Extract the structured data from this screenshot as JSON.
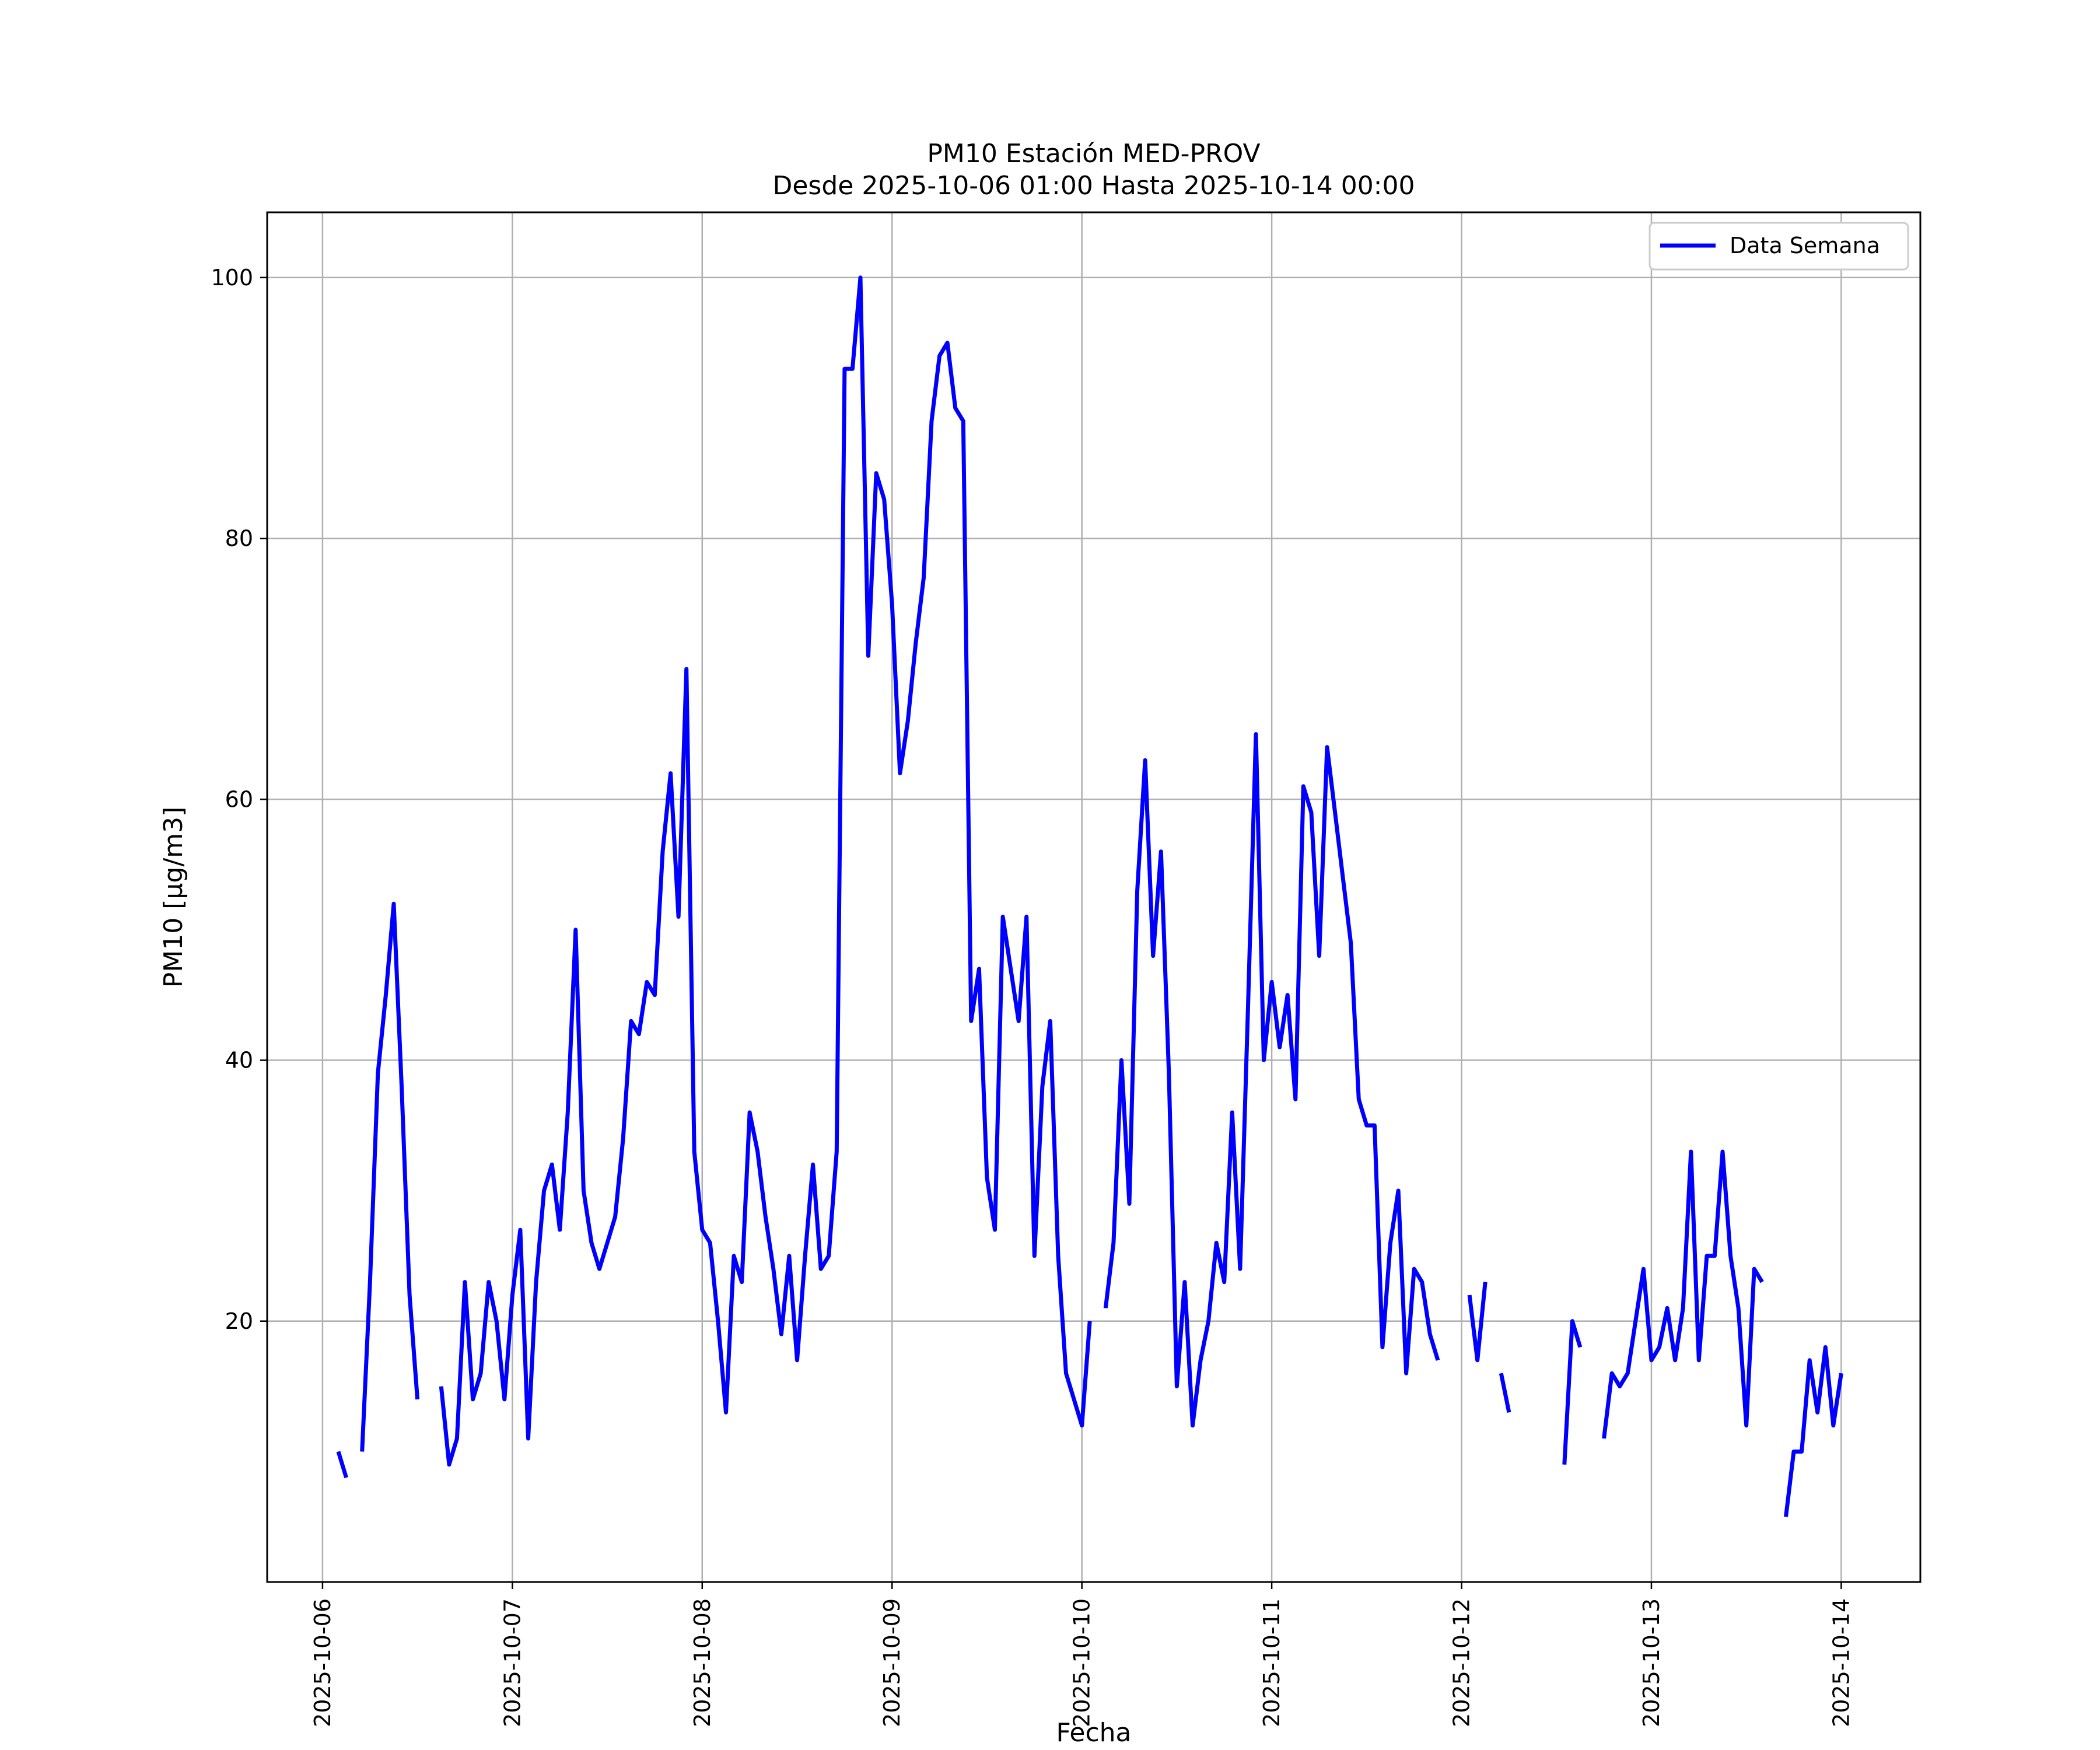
{
  "chart_data": {
    "type": "line",
    "title": [
      "PM10 Estación MED-PROV",
      "Desde 2025-10-06 01:00 Hasta 2025-10-14 00:00"
    ],
    "xlabel": "Fecha",
    "ylabel": "PM10 [μg/m3]",
    "xlim": [
      "2025-10-05 17:00",
      "2025-10-14 10:00"
    ],
    "ylim": [
      0,
      105
    ],
    "x_ticks": [
      "2025-10-06",
      "2025-10-07",
      "2025-10-08",
      "2025-10-09",
      "2025-10-10",
      "2025-10-11",
      "2025-10-12",
      "2025-10-13",
      "2025-10-14"
    ],
    "y_ticks": [
      20,
      40,
      60,
      80,
      100
    ],
    "grid": true,
    "legend": {
      "position": "top-right",
      "entries": [
        "Data Semana"
      ]
    },
    "series": [
      {
        "name": "Data Semana",
        "color": "#0000ff",
        "points": [
          [
            "2025-10-06 02:00",
            10
          ],
          [
            "2025-10-06 03:00",
            8
          ],
          [
            "2025-10-06 04:00",
            null
          ],
          [
            "2025-10-06 05:00",
            10
          ],
          [
            "2025-10-06 06:00",
            23
          ],
          [
            "2025-10-06 07:00",
            39
          ],
          [
            "2025-10-06 08:00",
            45
          ],
          [
            "2025-10-06 09:00",
            52
          ],
          [
            "2025-10-06 10:00",
            38
          ],
          [
            "2025-10-06 11:00",
            22
          ],
          [
            "2025-10-06 12:00",
            14
          ],
          [
            "2025-10-06 13:00",
            null
          ],
          [
            "2025-10-06 15:00",
            15
          ],
          [
            "2025-10-06 16:00",
            9
          ],
          [
            "2025-10-06 17:00",
            11
          ],
          [
            "2025-10-06 18:00",
            23
          ],
          [
            "2025-10-06 19:00",
            14
          ],
          [
            "2025-10-06 20:00",
            16
          ],
          [
            "2025-10-06 21:00",
            23
          ],
          [
            "2025-10-06 22:00",
            20
          ],
          [
            "2025-10-06 23:00",
            14
          ],
          [
            "2025-10-07 00:00",
            22
          ],
          [
            "2025-10-07 01:00",
            27
          ],
          [
            "2025-10-07 02:00",
            11
          ],
          [
            "2025-10-07 03:00",
            23
          ],
          [
            "2025-10-07 04:00",
            30
          ],
          [
            "2025-10-07 05:00",
            32
          ],
          [
            "2025-10-07 06:00",
            27
          ],
          [
            "2025-10-07 07:00",
            36
          ],
          [
            "2025-10-07 08:00",
            50
          ],
          [
            "2025-10-07 09:00",
            30
          ],
          [
            "2025-10-07 10:00",
            26
          ],
          [
            "2025-10-07 11:00",
            24
          ],
          [
            "2025-10-07 12:00",
            26
          ],
          [
            "2025-10-07 13:00",
            28
          ],
          [
            "2025-10-07 14:00",
            34
          ],
          [
            "2025-10-07 15:00",
            43
          ],
          [
            "2025-10-07 16:00",
            42
          ],
          [
            "2025-10-07 17:00",
            46
          ],
          [
            "2025-10-07 18:00",
            45
          ],
          [
            "2025-10-07 19:00",
            56
          ],
          [
            "2025-10-07 20:00",
            62
          ],
          [
            "2025-10-07 21:00",
            51
          ],
          [
            "2025-10-07 22:00",
            70
          ],
          [
            "2025-10-07 23:00",
            33
          ],
          [
            "2025-10-08 00:00",
            27
          ],
          [
            "2025-10-08 01:00",
            26
          ],
          [
            "2025-10-08 02:00",
            20
          ],
          [
            "2025-10-08 03:00",
            13
          ],
          [
            "2025-10-08 04:00",
            25
          ],
          [
            "2025-10-08 05:00",
            23
          ],
          [
            "2025-10-08 06:00",
            36
          ],
          [
            "2025-10-08 07:00",
            33
          ],
          [
            "2025-10-08 08:00",
            28
          ],
          [
            "2025-10-08 09:00",
            24
          ],
          [
            "2025-10-08 10:00",
            19
          ],
          [
            "2025-10-08 11:00",
            25
          ],
          [
            "2025-10-08 12:00",
            17
          ],
          [
            "2025-10-08 13:00",
            25
          ],
          [
            "2025-10-08 14:00",
            32
          ],
          [
            "2025-10-08 15:00",
            24
          ],
          [
            "2025-10-08 16:00",
            25
          ],
          [
            "2025-10-08 17:00",
            33
          ],
          [
            "2025-10-08 18:00",
            93
          ],
          [
            "2025-10-08 19:00",
            93
          ],
          [
            "2025-10-08 20:00",
            100
          ],
          [
            "2025-10-08 21:00",
            71
          ],
          [
            "2025-10-08 22:00",
            85
          ],
          [
            "2025-10-08 23:00",
            83
          ],
          [
            "2025-10-09 00:00",
            75
          ],
          [
            "2025-10-09 01:00",
            62
          ],
          [
            "2025-10-09 02:00",
            66
          ],
          [
            "2025-10-09 03:00",
            72
          ],
          [
            "2025-10-09 04:00",
            77
          ],
          [
            "2025-10-09 05:00",
            89
          ],
          [
            "2025-10-09 06:00",
            94
          ],
          [
            "2025-10-09 07:00",
            95
          ],
          [
            "2025-10-09 08:00",
            90
          ],
          [
            "2025-10-09 09:00",
            89
          ],
          [
            "2025-10-09 10:00",
            43
          ],
          [
            "2025-10-09 11:00",
            47
          ],
          [
            "2025-10-09 12:00",
            31
          ],
          [
            "2025-10-09 13:00",
            27
          ],
          [
            "2025-10-09 14:00",
            51
          ],
          [
            "2025-10-09 15:00",
            47
          ],
          [
            "2025-10-09 16:00",
            43
          ],
          [
            "2025-10-09 17:00",
            51
          ],
          [
            "2025-10-09 18:00",
            25
          ],
          [
            "2025-10-09 19:00",
            38
          ],
          [
            "2025-10-09 20:00",
            43
          ],
          [
            "2025-10-09 21:00",
            25
          ],
          [
            "2025-10-09 22:00",
            16
          ],
          [
            "2025-10-09 23:00",
            14
          ],
          [
            "2025-10-10 00:00",
            12
          ],
          [
            "2025-10-10 01:00",
            20
          ],
          [
            "2025-10-10 02:00",
            null
          ],
          [
            "2025-10-10 03:00",
            21
          ],
          [
            "2025-10-10 04:00",
            26
          ],
          [
            "2025-10-10 05:00",
            40
          ],
          [
            "2025-10-10 06:00",
            29
          ],
          [
            "2025-10-10 07:00",
            53
          ],
          [
            "2025-10-10 08:00",
            63
          ],
          [
            "2025-10-10 09:00",
            48
          ],
          [
            "2025-10-10 10:00",
            56
          ],
          [
            "2025-10-10 11:00",
            39
          ],
          [
            "2025-10-10 12:00",
            15
          ],
          [
            "2025-10-10 13:00",
            23
          ],
          [
            "2025-10-10 14:00",
            12
          ],
          [
            "2025-10-10 15:00",
            17
          ],
          [
            "2025-10-10 16:00",
            20
          ],
          [
            "2025-10-10 17:00",
            26
          ],
          [
            "2025-10-10 18:00",
            23
          ],
          [
            "2025-10-10 19:00",
            36
          ],
          [
            "2025-10-10 20:00",
            24
          ],
          [
            "2025-10-10 21:00",
            44
          ],
          [
            "2025-10-10 22:00",
            65
          ],
          [
            "2025-10-10 23:00",
            40
          ],
          [
            "2025-10-11 00:00",
            46
          ],
          [
            "2025-10-11 01:00",
            41
          ],
          [
            "2025-10-11 02:00",
            45
          ],
          [
            "2025-10-11 03:00",
            37
          ],
          [
            "2025-10-11 04:00",
            61
          ],
          [
            "2025-10-11 05:00",
            59
          ],
          [
            "2025-10-11 06:00",
            48
          ],
          [
            "2025-10-11 07:00",
            64
          ],
          [
            "2025-10-11 08:00",
            59
          ],
          [
            "2025-10-11 09:00",
            54
          ],
          [
            "2025-10-11 10:00",
            49
          ],
          [
            "2025-10-11 11:00",
            37
          ],
          [
            "2025-10-11 12:00",
            35
          ],
          [
            "2025-10-11 13:00",
            35
          ],
          [
            "2025-10-11 14:00",
            18
          ],
          [
            "2025-10-11 15:00",
            26
          ],
          [
            "2025-10-11 16:00",
            30
          ],
          [
            "2025-10-11 17:00",
            16
          ],
          [
            "2025-10-11 18:00",
            24
          ],
          [
            "2025-10-11 19:00",
            23
          ],
          [
            "2025-10-11 20:00",
            19
          ],
          [
            "2025-10-11 21:00",
            17
          ],
          [
            "2025-10-11 22:00",
            null
          ],
          [
            "2025-10-12 01:00",
            22
          ],
          [
            "2025-10-12 02:00",
            17
          ],
          [
            "2025-10-12 03:00",
            23
          ],
          [
            "2025-10-12 04:00",
            null
          ],
          [
            "2025-10-12 05:00",
            16
          ],
          [
            "2025-10-12 06:00",
            13
          ],
          [
            "2025-10-12 07:00",
            null
          ],
          [
            "2025-10-12 13:00",
            9
          ],
          [
            "2025-10-12 14:00",
            20
          ],
          [
            "2025-10-12 15:00",
            18
          ],
          [
            "2025-10-12 16:00",
            null
          ],
          [
            "2025-10-12 18:00",
            11
          ],
          [
            "2025-10-12 19:00",
            16
          ],
          [
            "2025-10-12 20:00",
            15
          ],
          [
            "2025-10-12 21:00",
            16
          ],
          [
            "2025-10-12 22:00",
            20
          ],
          [
            "2025-10-12 23:00",
            24
          ],
          [
            "2025-10-13 00:00",
            17
          ],
          [
            "2025-10-13 01:00",
            18
          ],
          [
            "2025-10-13 02:00",
            21
          ],
          [
            "2025-10-13 03:00",
            17
          ],
          [
            "2025-10-13 04:00",
            21
          ],
          [
            "2025-10-13 05:00",
            33
          ],
          [
            "2025-10-13 06:00",
            17
          ],
          [
            "2025-10-13 07:00",
            25
          ],
          [
            "2025-10-13 08:00",
            25
          ],
          [
            "2025-10-13 09:00",
            33
          ],
          [
            "2025-10-13 10:00",
            25
          ],
          [
            "2025-10-13 11:00",
            21
          ],
          [
            "2025-10-13 12:00",
            12
          ],
          [
            "2025-10-13 13:00",
            24
          ],
          [
            "2025-10-13 14:00",
            23
          ],
          [
            "2025-10-13 15:00",
            null
          ],
          [
            "2025-10-13 17:00",
            5
          ],
          [
            "2025-10-13 18:00",
            10
          ],
          [
            "2025-10-13 19:00",
            10
          ],
          [
            "2025-10-13 20:00",
            17
          ],
          [
            "2025-10-13 21:00",
            13
          ],
          [
            "2025-10-13 22:00",
            18
          ],
          [
            "2025-10-13 23:00",
            12
          ],
          [
            "2025-10-14 00:00",
            16
          ]
        ]
      }
    ]
  }
}
